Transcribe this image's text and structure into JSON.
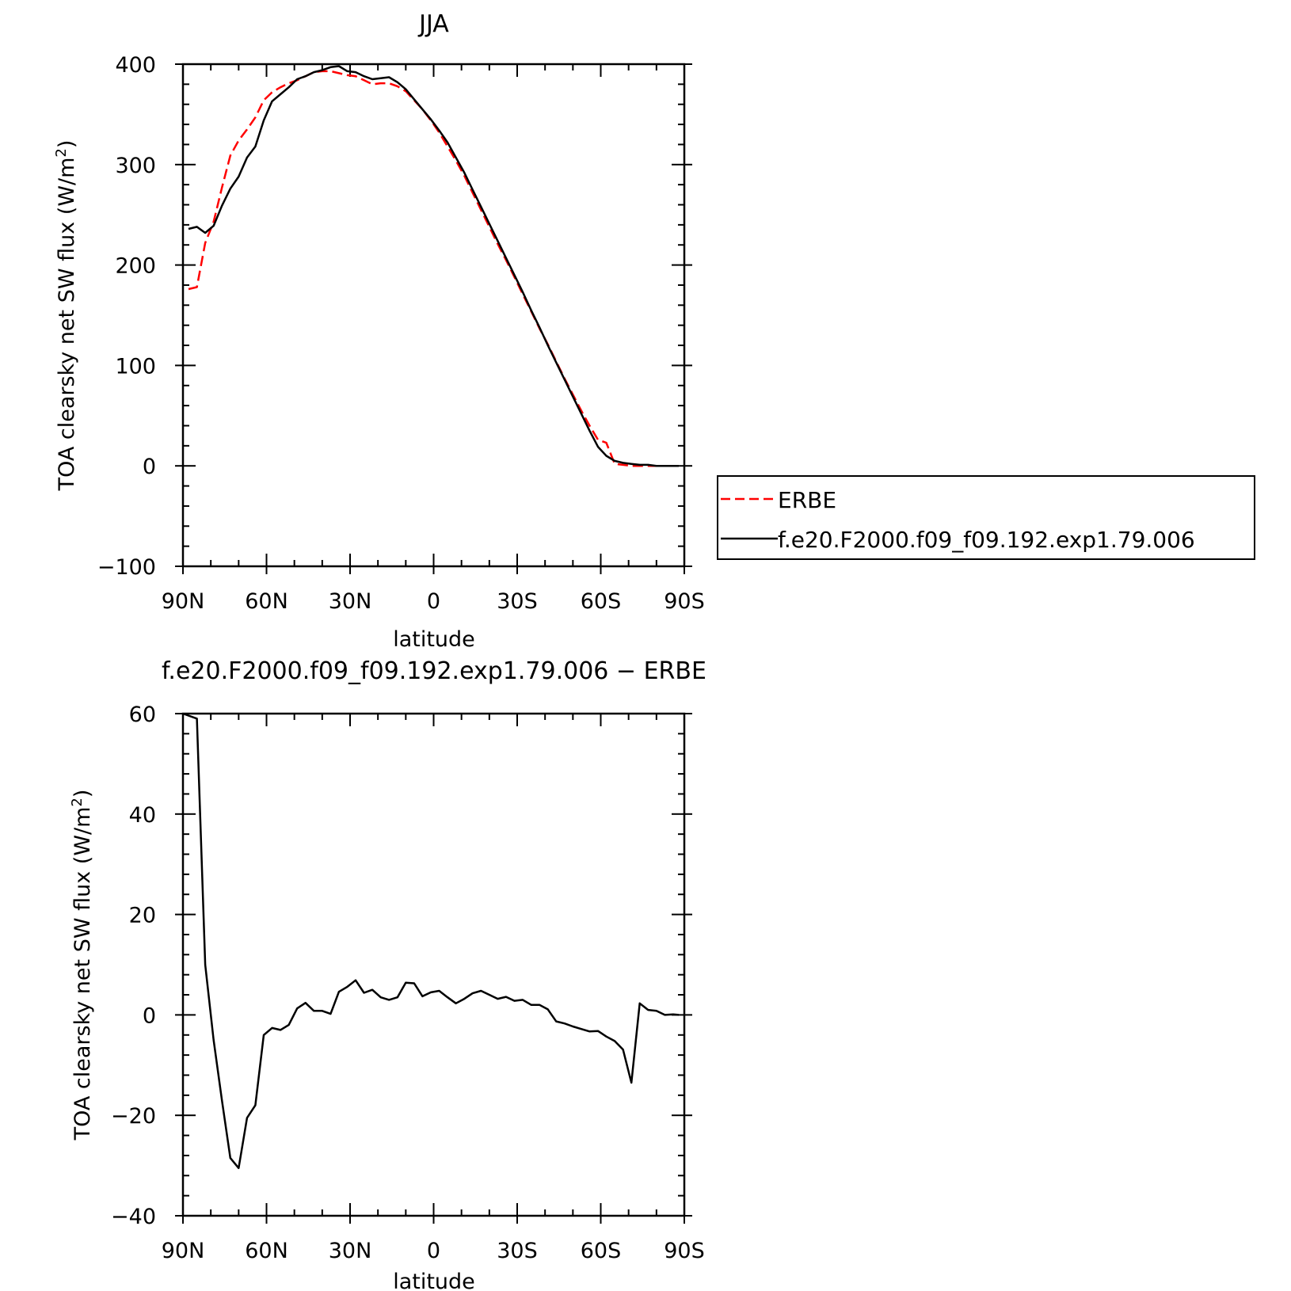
{
  "chart_data": [
    {
      "type": "line",
      "title": "JJA",
      "xlabel": "latitude",
      "ylabel": "TOA clearsky net SW flux (W/m²)",
      "ylabel_main": "TOA clearsky net SW flux (W/m",
      "ylabel_sup": "2",
      "ylabel_close": ")",
      "xlim": [
        90,
        -90
      ],
      "ylim": [
        -100,
        400
      ],
      "xtick_labels": [
        "90N",
        "60N",
        "30N",
        "0",
        "30S",
        "60S",
        "90S"
      ],
      "ytick_labels": [
        "−100",
        "0",
        "100",
        "200",
        "300",
        "400"
      ],
      "legend_position": "right",
      "series": [
        {
          "name": "ERBE",
          "color": "#ff0000",
          "dash": "dashed",
          "x": [
            88,
            85,
            82,
            79,
            76,
            73,
            70,
            67,
            64,
            61,
            58,
            55,
            52,
            49,
            46,
            43,
            40,
            37,
            34,
            31,
            28,
            25,
            22,
            19,
            16,
            13,
            10,
            7,
            4,
            1,
            -2,
            -5,
            -8,
            -11,
            -14,
            -17,
            -20,
            -23,
            -26,
            -29,
            -32,
            -35,
            -38,
            -41,
            -44,
            -47,
            -50,
            -53,
            -56,
            -59,
            -62,
            -65,
            -68,
            -71,
            -74,
            -77,
            -80,
            -83,
            -86,
            -88
          ],
          "y": [
            176,
            178,
            222,
            243,
            277,
            309,
            324,
            335,
            347,
            364,
            372,
            377,
            381,
            384,
            388,
            392,
            393,
            393,
            391,
            389,
            388,
            384,
            380,
            381,
            381,
            378,
            373,
            364,
            355,
            344,
            332,
            318,
            304,
            289,
            272,
            255,
            238,
            221,
            205,
            188,
            171,
            154,
            137,
            121,
            104,
            87,
            71,
            55,
            40,
            26,
            23,
            2,
            1,
            0,
            0,
            0,
            0,
            0,
            0,
            0
          ]
        },
        {
          "name": "f.e20.F2000.f09_f09.192.exp1.79.006",
          "color": "#000000",
          "dash": "solid",
          "x": [
            88,
            85,
            82,
            79,
            76,
            73,
            70,
            67,
            64,
            61,
            58,
            55,
            52,
            49,
            46,
            43,
            40,
            37,
            34,
            31,
            28,
            25,
            22,
            19,
            16,
            13,
            10,
            7,
            4,
            1,
            -2,
            -5,
            -8,
            -11,
            -14,
            -17,
            -20,
            -23,
            -26,
            -29,
            -32,
            -35,
            -38,
            -41,
            -44,
            -47,
            -50,
            -53,
            -56,
            -59,
            -62,
            -65,
            -68,
            -71,
            -74,
            -77,
            -80,
            -83,
            -86,
            -88
          ],
          "y": [
            236,
            238,
            232,
            239,
            259,
            276,
            288,
            307,
            318,
            344,
            363,
            370,
            377,
            385,
            388,
            392,
            394,
            397,
            398,
            393,
            392,
            388,
            385,
            386,
            387,
            382,
            375,
            365,
            355,
            345,
            334,
            322,
            307,
            292,
            275,
            258,
            241,
            224,
            207,
            190,
            173,
            155,
            138,
            120,
            103,
            86,
            69,
            52,
            35,
            19,
            10,
            5,
            3,
            2,
            1,
            1,
            0,
            0,
            0,
            0
          ]
        }
      ]
    },
    {
      "type": "line",
      "title": "f.e20.F2000.f09_f09.192.exp1.79.006 − ERBE",
      "xlabel": "latitude",
      "ylabel": "TOA clearsky net SW flux (W/m²)",
      "ylabel_main": "TOA clearsky net SW flux (W/m",
      "ylabel_sup": "2",
      "ylabel_close": ")",
      "xlim": [
        90,
        -90
      ],
      "ylim": [
        -40,
        60
      ],
      "xtick_labels": [
        "90N",
        "60N",
        "30N",
        "0",
        "30S",
        "60S",
        "90S"
      ],
      "ytick_labels": [
        "−40",
        "−20",
        "0",
        "20",
        "40",
        "60"
      ],
      "series": [
        {
          "name": "",
          "color": "#000000",
          "dash": "solid",
          "x": [
            90,
            85,
            82,
            79,
            76,
            73,
            70,
            67,
            64,
            61,
            58,
            55,
            52,
            49,
            46,
            43,
            40,
            37,
            34,
            31,
            28,
            25,
            22,
            19,
            16,
            13,
            10,
            7,
            4,
            1,
            -2,
            -5,
            -8,
            -11,
            -14,
            -17,
            -20,
            -23,
            -26,
            -29,
            -32,
            -35,
            -38,
            -41,
            -44,
            -47,
            -50,
            -53,
            -56,
            -59,
            -62,
            -65,
            -68,
            -71,
            -74,
            -77,
            -80,
            -83,
            -86,
            -88
          ],
          "y": [
            60,
            59,
            10,
            -5,
            -17,
            -28.5,
            -30.5,
            -20.5,
            -18,
            -4,
            -2.6,
            -3,
            -2,
            1.3,
            2.4,
            0.8,
            0.8,
            0.2,
            4.6,
            5.6,
            6.9,
            4.4,
            5.0,
            3.5,
            3.0,
            3.5,
            6.4,
            6.3,
            3.7,
            4.5,
            4.8,
            3.5,
            2.3,
            3.2,
            4.3,
            4.8,
            4.0,
            3.2,
            3.6,
            2.8,
            3.0,
            2.0,
            2.0,
            1.1,
            -1.3,
            -1.7,
            -2.3,
            -2.8,
            -3.3,
            -3.2,
            -4.3,
            -5.2,
            -6.9,
            -13.5,
            2.3,
            1.0,
            0.8,
            0.0,
            0.1,
            0.0
          ]
        }
      ]
    }
  ]
}
